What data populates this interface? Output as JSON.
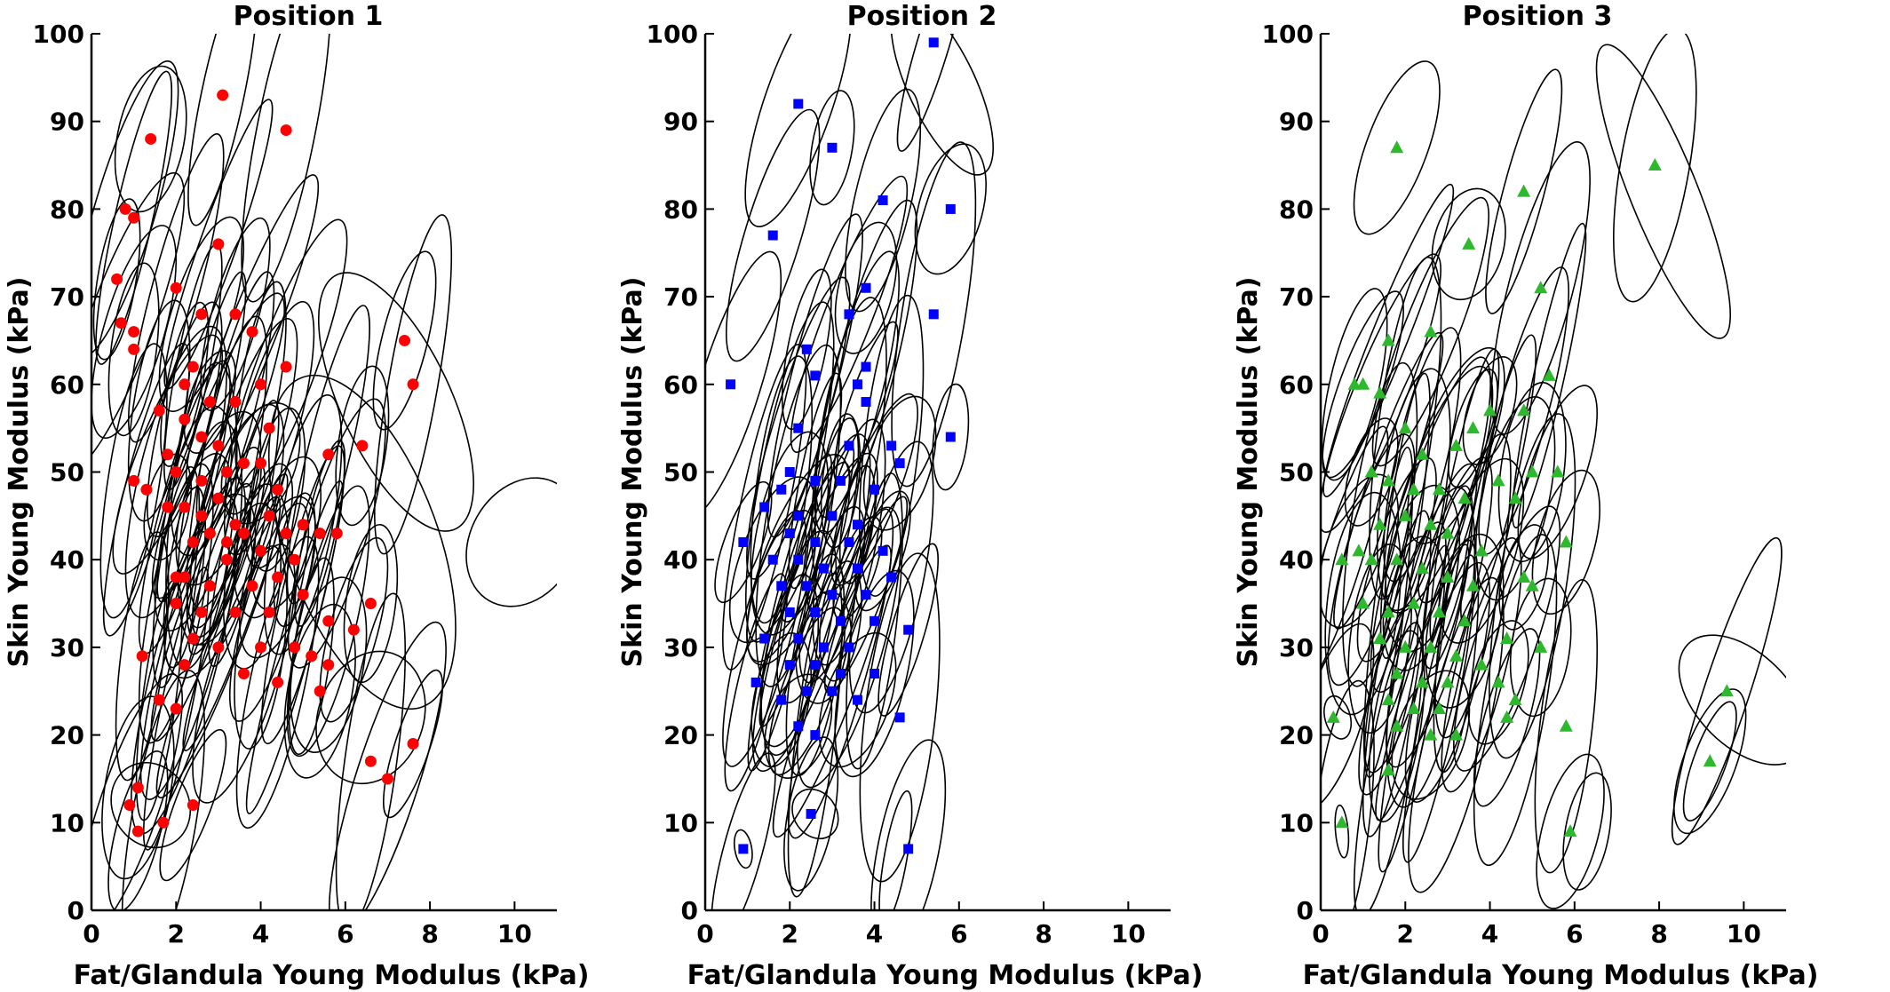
{
  "chart_data": [
    {
      "type": "scatter",
      "title": "Position 1",
      "xlabel": "Fat/Glandula Young Modulus (kPa)",
      "ylabel": "Skin Young Modulus (kPa)",
      "xlim": [
        0,
        11
      ],
      "ylim": [
        0,
        100
      ],
      "xticks": [
        "0",
        "2",
        "4",
        "6",
        "8",
        "10"
      ],
      "yticks": [
        "0",
        "10",
        "20",
        "30",
        "40",
        "50",
        "60",
        "70",
        "80",
        "90",
        "100"
      ],
      "marker": "circle",
      "color": "#ff0000",
      "overlay": "black confidence ellipses around each point",
      "x": [
        3.1,
        4.6,
        1.4,
        0.8,
        1.0,
        0.6,
        0.7,
        1.0,
        1.0,
        2.0,
        3.0,
        7.4,
        7.6,
        6.4,
        5.6,
        4.6,
        2.4,
        2.6,
        3.4,
        3.8,
        2.2,
        2.8,
        4.0,
        1.6,
        1.8,
        2.2,
        3.4,
        2.6,
        3.0,
        4.2,
        3.6,
        2.0,
        2.6,
        3.2,
        4.0,
        4.4,
        3.0,
        2.2,
        1.8,
        2.6,
        3.4,
        4.2,
        5.0,
        2.8,
        3.6,
        4.6,
        2.4,
        3.2,
        4.0,
        1.0,
        1.3,
        2.0,
        5.4,
        3.2,
        4.8,
        5.8,
        6.6,
        2.2,
        2.8,
        3.8,
        4.4,
        5.0,
        2.0,
        2.6,
        3.4,
        4.2,
        5.6,
        6.2,
        1.2,
        2.4,
        3.0,
        4.0,
        4.8,
        5.2,
        5.6,
        2.2,
        3.6,
        4.4,
        1.6,
        2.0,
        5.4,
        6.6,
        7.6,
        7.0,
        1.1,
        0.9,
        1.7,
        2.4,
        1.1
      ],
      "y": [
        93,
        89,
        88,
        80,
        79,
        72,
        67,
        66,
        64,
        71,
        76,
        65,
        60,
        53,
        52,
        62,
        62,
        68,
        68,
        66,
        60,
        58,
        60,
        57,
        52,
        56,
        58,
        54,
        53,
        55,
        51,
        50,
        49,
        50,
        51,
        48,
        47,
        46,
        46,
        45,
        44,
        45,
        44,
        43,
        43,
        43,
        42,
        42,
        41,
        49,
        48,
        38,
        43,
        40,
        40,
        43,
        35,
        38,
        37,
        37,
        38,
        36,
        35,
        34,
        34,
        34,
        33,
        32,
        29,
        31,
        30,
        30,
        30,
        29,
        28,
        28,
        27,
        26,
        24,
        23,
        25,
        17,
        19,
        15,
        14,
        12,
        10,
        12,
        9
      ]
    },
    {
      "type": "scatter",
      "title": "Position 2",
      "xlabel": "Fat/Glandula Young Modulus (kPa)",
      "ylabel": "Skin Young Modulus (kPa)",
      "xlim": [
        0,
        11
      ],
      "ylim": [
        0,
        100
      ],
      "xticks": [
        "0",
        "2",
        "4",
        "6",
        "8",
        "10"
      ],
      "yticks": [
        "0",
        "10",
        "20",
        "30",
        "40",
        "50",
        "60",
        "70",
        "80",
        "90",
        "100"
      ],
      "marker": "square",
      "color": "#0000ff",
      "overlay": "black confidence ellipses around each point",
      "x": [
        5.4,
        2.2,
        3.0,
        4.2,
        5.8,
        1.6,
        3.8,
        3.4,
        5.4,
        2.4,
        2.6,
        3.8,
        3.6,
        0.6,
        3.8,
        2.2,
        5.8,
        4.4,
        3.4,
        2.0,
        4.6,
        1.8,
        2.6,
        3.2,
        4.0,
        1.4,
        2.2,
        3.0,
        3.6,
        2.0,
        2.6,
        3.4,
        4.2,
        0.9,
        1.6,
        2.2,
        2.8,
        3.6,
        4.4,
        1.8,
        2.4,
        3.0,
        3.8,
        2.0,
        2.6,
        3.2,
        4.0,
        4.8,
        1.4,
        2.2,
        2.8,
        3.4,
        1.2,
        2.0,
        2.6,
        3.2,
        4.0,
        4.6,
        1.8,
        2.4,
        3.0,
        3.6,
        2.2,
        2.6,
        0.9,
        2.5,
        4.8
      ],
      "y": [
        99,
        92,
        87,
        81,
        80,
        77,
        71,
        68,
        68,
        64,
        61,
        62,
        60,
        60,
        58,
        55,
        54,
        53,
        53,
        50,
        51,
        48,
        49,
        49,
        48,
        46,
        45,
        45,
        44,
        43,
        42,
        42,
        41,
        42,
        40,
        40,
        39,
        39,
        38,
        37,
        37,
        36,
        36,
        34,
        34,
        33,
        33,
        32,
        31,
        31,
        30,
        30,
        26,
        28,
        28,
        27,
        27,
        22,
        24,
        25,
        25,
        24,
        21,
        20,
        7,
        11,
        7
      ]
    },
    {
      "type": "scatter",
      "title": "Position 3",
      "xlabel": "Fat/Glandula Young Modulus (kPa)",
      "ylabel": "Skin Young Modulus (kPa)",
      "xlim": [
        0,
        11
      ],
      "ylim": [
        0,
        100
      ],
      "xticks": [
        "0",
        "2",
        "4",
        "6",
        "8",
        "10"
      ],
      "yticks": [
        "0",
        "10",
        "20",
        "30",
        "40",
        "50",
        "60",
        "70",
        "80",
        "90",
        "100"
      ],
      "marker": "triangle",
      "color": "#2db82d",
      "overlay": "black confidence ellipses around each point",
      "x": [
        7.9,
        1.8,
        4.8,
        3.5,
        5.2,
        2.6,
        1.6,
        1.0,
        0.8,
        1.4,
        5.4,
        4.0,
        3.6,
        2.0,
        3.2,
        4.8,
        5.0,
        5.6,
        2.4,
        1.2,
        1.6,
        2.2,
        2.8,
        3.4,
        4.2,
        4.6,
        0.9,
        1.4,
        2.0,
        2.6,
        3.0,
        3.8,
        0.5,
        1.2,
        1.8,
        2.4,
        3.0,
        3.6,
        4.8,
        5.0,
        5.8,
        1.0,
        1.6,
        2.2,
        2.8,
        3.4,
        4.4,
        1.4,
        2.0,
        2.6,
        3.2,
        3.8,
        5.2,
        1.8,
        2.4,
        3.0,
        4.2,
        1.6,
        2.2,
        2.8,
        4.6,
        4.4,
        1.8,
        2.6,
        3.2,
        5.8,
        9.6,
        9.2,
        1.6,
        0.3,
        0.5,
        5.9
      ],
      "y": [
        85,
        87,
        82,
        76,
        71,
        66,
        65,
        60,
        60,
        59,
        61,
        57,
        55,
        55,
        53,
        57,
        50,
        50,
        52,
        50,
        49,
        48,
        48,
        47,
        49,
        47,
        41,
        44,
        45,
        44,
        43,
        41,
        40,
        40,
        40,
        39,
        38,
        37,
        38,
        37,
        42,
        35,
        34,
        35,
        34,
        33,
        31,
        31,
        30,
        30,
        29,
        28,
        30,
        27,
        26,
        26,
        26,
        24,
        23,
        23,
        24,
        22,
        21,
        20,
        20,
        21,
        25,
        17,
        16,
        22,
        10,
        9
      ]
    }
  ]
}
